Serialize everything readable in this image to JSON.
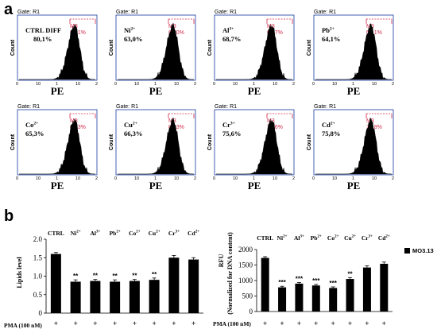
{
  "panel_a": {
    "letter": "a",
    "gate_label": "Gate: R1",
    "y_label": "Count",
    "x_label": "PE",
    "marker": "M3",
    "tick_labels": [
      "0",
      "10",
      "1",
      "10",
      "2"
    ],
    "histograms": [
      {
        "name": "ctrl",
        "label_main": "CTRL DIFF",
        "label_sup": "",
        "value": "80,1%",
        "m3_value": "80,1%"
      },
      {
        "name": "ni",
        "label_main": "Ni",
        "label_sup": "2+",
        "value": "63,0%",
        "m3_value": "63,0%"
      },
      {
        "name": "al",
        "label_main": "Al",
        "label_sup": "3+",
        "value": "68,7%",
        "m3_value": "68,7%"
      },
      {
        "name": "pb",
        "label_main": "Pb",
        "label_sup": "2+",
        "value": "64,1%",
        "m3_value": "64,1%"
      },
      {
        "name": "co",
        "label_main": "Co",
        "label_sup": "2+",
        "value": "65,3%",
        "m3_value": "65,3%"
      },
      {
        "name": "cu",
        "label_main": "Cu",
        "label_sup": "2+",
        "value": "66,3%",
        "m3_value": "66,3%"
      },
      {
        "name": "cr",
        "label_main": "Cr",
        "label_sup": "3+",
        "value": "75,6%",
        "m3_value": "75,6%"
      },
      {
        "name": "cd",
        "label_main": "Cd",
        "label_sup": "2+",
        "value": "75,8%",
        "m3_value": "75,8%"
      }
    ]
  },
  "panel_b": {
    "letter": "b",
    "categories": [
      {
        "main": "CTRL",
        "sup": ""
      },
      {
        "main": "Ni",
        "sup": "2+"
      },
      {
        "main": "Al",
        "sup": "3+"
      },
      {
        "main": "Pb",
        "sup": "2+"
      },
      {
        "main": "Co",
        "sup": "2+"
      },
      {
        "main": "Cu",
        "sup": "2+"
      },
      {
        "main": "Cr",
        "sup": "3+"
      },
      {
        "main": "Cd",
        "sup": "2+"
      }
    ],
    "pma_label": "PMA (100 nM)",
    "plus_sign": "+",
    "legend_label": "MO3.13",
    "legend_color": "#000000"
  },
  "chart_data": [
    {
      "type": "bar",
      "ylabel": "Lipids level",
      "ylim": [
        0,
        2.0
      ],
      "yticks": [
        "0",
        "0.5",
        "1.0",
        "1.5",
        "2.0"
      ],
      "ytick_values": [
        0,
        0.5,
        1.0,
        1.5,
        2.0
      ],
      "values": [
        1.6,
        0.85,
        0.87,
        0.85,
        0.87,
        0.9,
        1.5,
        1.45
      ],
      "errors": [
        0.04,
        0.05,
        0.04,
        0.05,
        0.04,
        0.05,
        0.06,
        0.05
      ],
      "significance": [
        "",
        "**",
        "**",
        "**",
        "**",
        "**",
        "",
        ""
      ],
      "bar_color": "#000000",
      "grid": false
    },
    {
      "type": "bar",
      "ylabel_line1": "RFU",
      "ylabel_line2": "(Normalized for DNA content)",
      "ylim": [
        0,
        2000
      ],
      "yticks": [
        "0",
        "500",
        "1000",
        "1500",
        "2000"
      ],
      "ytick_values": [
        0,
        500,
        1000,
        1500,
        2000
      ],
      "values": [
        1730,
        780,
        900,
        840,
        760,
        1050,
        1420,
        1540
      ],
      "errors": [
        40,
        35,
        35,
        35,
        35,
        45,
        55,
        55
      ],
      "significance": [
        "",
        "***",
        "***",
        "***",
        "***",
        "**",
        "",
        ""
      ],
      "bar_color": "#000000",
      "legend_position": "right",
      "grid": false
    }
  ]
}
